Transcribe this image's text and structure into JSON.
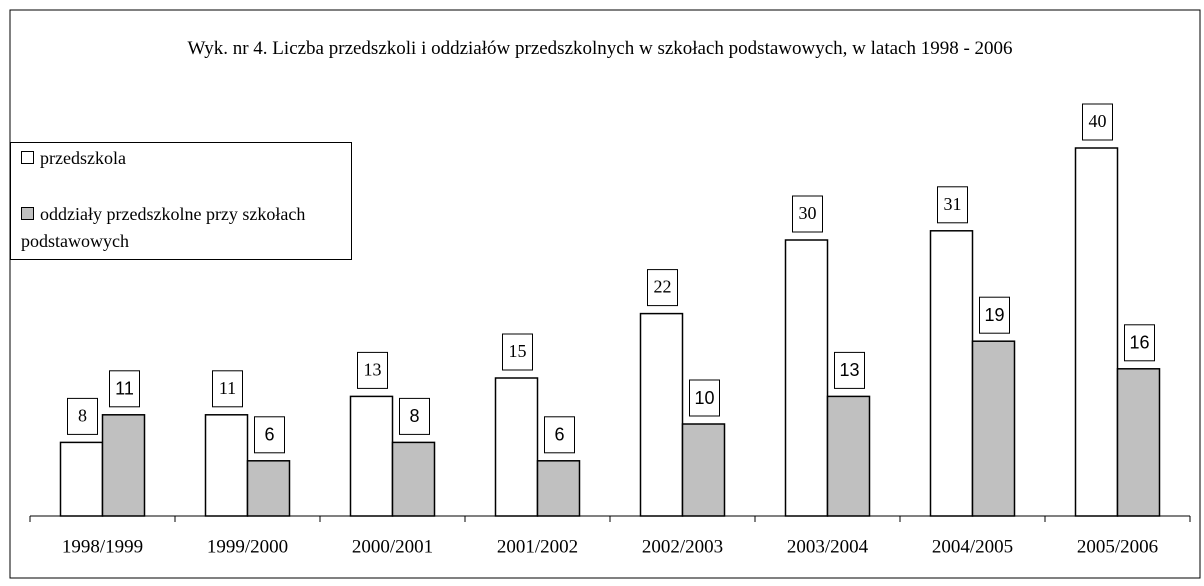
{
  "chart_data": {
    "type": "bar",
    "title": "Wyk. nr 4. Liczba przedszkoli i oddziałów przedszkolnych w szkołach podstawowych, w latach 1998 - 2006",
    "categories": [
      "1998/1999",
      "1999/2000",
      "2000/2001",
      "2001/2002",
      "2002/2003",
      "2003/2004",
      "2004/2005",
      "2005/2006"
    ],
    "series": [
      {
        "name": "przedszkola",
        "color": "#ffffff",
        "values": [
          8,
          11,
          13,
          15,
          22,
          30,
          31,
          40
        ]
      },
      {
        "name": "oddziały przedszkolne przy szkołach podstawowych",
        "color": "#c0c0c0",
        "values": [
          11,
          6,
          8,
          6,
          10,
          13,
          19,
          16
        ]
      }
    ],
    "legend": "top-left"
  }
}
